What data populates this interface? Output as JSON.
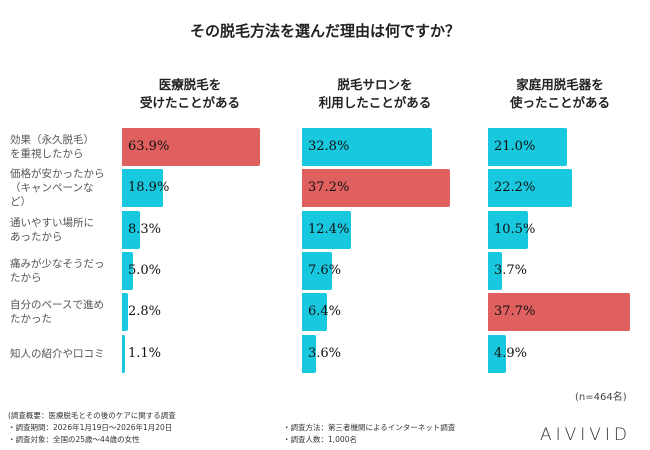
{
  "chart_data": {
    "type": "bar",
    "title": "その脱毛方法を選んだ理由は何ですか？",
    "categories": [
      "効果（永久脱毛）を重視したから",
      "価格が安かったから（キャンペーンなど）",
      "通いやすい場所にあったから",
      "痛みが少なそうだったから",
      "自分のペースで進めたかった",
      "知人の紹介や口コミ"
    ],
    "series": [
      {
        "name": "医療脱毛を受けたことがある",
        "values": [
          63.9,
          18.9,
          8.3,
          5.0,
          2.8,
          1.1
        ],
        "labels": [
          "63.9%",
          "18.9%",
          "8.3%",
          "5.0%",
          "2.8%",
          "1.1%"
        ]
      },
      {
        "name": "脱毛サロンを利用したことがある",
        "values": [
          32.8,
          37.2,
          12.4,
          7.6,
          6.4,
          3.6
        ],
        "labels": [
          "32.8%",
          "37.2%",
          "12.4%",
          "7.6%",
          "6.4%",
          "3.6%"
        ]
      },
      {
        "name": "家庭用脱毛器を使ったことがある",
        "values": [
          21.0,
          22.2,
          10.5,
          3.7,
          37.7,
          4.9
        ],
        "labels": [
          "21.0%",
          "22.2%",
          "10.5%",
          "3.7%",
          "37.7%",
          "4.9%"
        ]
      }
    ],
    "colors": {
      "highlight": "#e06060",
      "default": "#18c8de"
    },
    "orientation": "horizontal",
    "grid": false
  },
  "header": {
    "col1": [
      "医療脱毛を",
      "受けたことがある"
    ],
    "col2": [
      "脱毛サロンを",
      "利用したことがある"
    ],
    "col3": [
      "家庭用脱毛器を",
      "使ったことがある"
    ]
  },
  "row_labels": [
    [
      "効果（永久脱毛）",
      "を重視したから"
    ],
    [
      "価格が安かったから",
      "（キャンペーンな",
      "ど）"
    ],
    [
      "通いやすい場所に",
      "あったから"
    ],
    [
      "痛みが少なそうだっ",
      "たから"
    ],
    [
      "自分のペースで進め",
      "たかった"
    ],
    [
      "知人の紹介や口コミ"
    ]
  ],
  "sample": "(n=464名)",
  "footer": {
    "overview": "(調査概要：医療脱毛とその後のケアに関する調査",
    "period": "・調査期間：2026年1月19日～2026年1月20日",
    "target": "・調査対象：全国の25歳～44歳の女性",
    "method": "・調査方法：第三者機関によるインターネット調査",
    "count": "・調査人数：1,000名"
  },
  "logo": "AIVIVID"
}
